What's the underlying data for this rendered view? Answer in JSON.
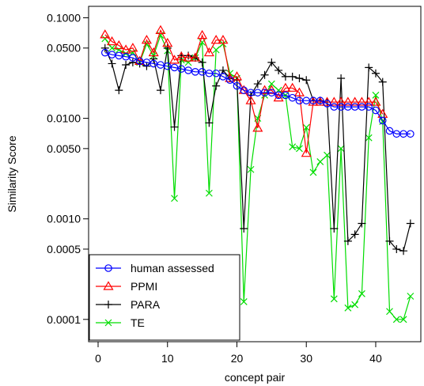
{
  "chart_data": {
    "type": "line",
    "xlabel": "concept pair",
    "ylabel": "Similarity Score",
    "xlim": [
      0,
      46.5
    ],
    "ylim": [
      6e-05,
      0.13
    ],
    "yscale": "log",
    "xticks": [
      0,
      10,
      20,
      30,
      40
    ],
    "yticks": [
      {
        "value": 0.1,
        "label": "0.1000"
      },
      {
        "value": 0.05,
        "label": "0.0500"
      },
      {
        "value": 0.01,
        "label": "0.0100"
      },
      {
        "value": 0.005,
        "label": "0.0050"
      },
      {
        "value": 0.001,
        "label": "0.0010"
      },
      {
        "value": 0.0005,
        "label": "0.0005"
      },
      {
        "value": 0.0001,
        "label": "0.0001"
      }
    ],
    "grid": false,
    "legend_position": "bottom-left",
    "series": [
      {
        "name": "human assessed",
        "color": "#0000ff",
        "marker": "circle",
        "x": [
          1,
          2,
          3,
          4,
          5,
          6,
          7,
          8,
          9,
          10,
          11,
          12,
          13,
          14,
          15,
          16,
          17,
          18,
          19,
          20,
          21,
          22,
          23,
          24,
          25,
          26,
          27,
          28,
          29,
          30,
          31,
          32,
          33,
          34,
          35,
          36,
          37,
          38,
          39,
          40,
          41,
          42,
          43,
          44,
          45
        ],
        "y": [
          0.045,
          0.043,
          0.042,
          0.041,
          0.04,
          0.037,
          0.036,
          0.035,
          0.034,
          0.033,
          0.032,
          0.031,
          0.03,
          0.029,
          0.029,
          0.028,
          0.028,
          0.026,
          0.024,
          0.021,
          0.019,
          0.018,
          0.018,
          0.018,
          0.018,
          0.017,
          0.017,
          0.016,
          0.015,
          0.015,
          0.015,
          0.015,
          0.014,
          0.013,
          0.013,
          0.013,
          0.013,
          0.013,
          0.013,
          0.012,
          0.0095,
          0.0075,
          0.007,
          0.007,
          0.007
        ]
      },
      {
        "name": "PPMI",
        "color": "#ff0000",
        "marker": "triangle",
        "x": [
          1,
          2,
          3,
          4,
          5,
          6,
          7,
          8,
          9,
          10,
          11,
          12,
          13,
          14,
          15,
          16,
          17,
          18,
          19,
          20,
          21,
          22,
          23,
          24,
          25,
          26,
          27,
          28,
          29,
          30,
          31,
          32,
          33,
          34,
          35,
          36,
          37,
          38,
          39,
          40,
          41
        ],
        "y": [
          0.068,
          0.058,
          0.053,
          0.048,
          0.05,
          0.037,
          0.06,
          0.045,
          0.075,
          0.056,
          0.038,
          0.041,
          0.04,
          0.04,
          0.067,
          0.045,
          0.06,
          0.06,
          0.025,
          0.026,
          0.019,
          0.015,
          0.008,
          0.019,
          0.019,
          0.016,
          0.02,
          0.02,
          0.018,
          0.0045,
          0.0145,
          0.0145,
          0.0145,
          0.0145,
          0.0145,
          0.0145,
          0.0145,
          0.0145,
          0.0145,
          0.0145,
          0.011
        ]
      },
      {
        "name": "PARA",
        "color": "#000000",
        "marker": "plus",
        "x": [
          1,
          2,
          3,
          4,
          5,
          6,
          7,
          8,
          9,
          10,
          11,
          12,
          13,
          14,
          15,
          16,
          17,
          18,
          19,
          20,
          21,
          22,
          23,
          24,
          25,
          26,
          27,
          28,
          29,
          30,
          31,
          32,
          33,
          34,
          35,
          36,
          37,
          38,
          39,
          40,
          41,
          42,
          43,
          44,
          45
        ],
        "y": [
          0.05,
          0.035,
          0.019,
          0.034,
          0.036,
          0.035,
          0.033,
          0.039,
          0.019,
          0.05,
          0.0082,
          0.042,
          0.042,
          0.04,
          0.036,
          0.009,
          0.021,
          0.03,
          0.025,
          0.024,
          0.0008,
          0.017,
          0.022,
          0.027,
          0.036,
          0.03,
          0.026,
          0.026,
          0.025,
          0.024,
          0.015,
          0.015,
          0.0145,
          0.0008,
          0.025,
          0.0006,
          0.0007,
          0.0009,
          0.032,
          0.028,
          0.023,
          0.0006,
          0.0005,
          0.00048,
          0.0009
        ]
      },
      {
        "name": "TE",
        "color": "#00dd00",
        "marker": "cross",
        "x": [
          1,
          2,
          3,
          4,
          5,
          6,
          7,
          8,
          9,
          10,
          11,
          12,
          13,
          14,
          15,
          16,
          17,
          18,
          19,
          20,
          21,
          22,
          23,
          24,
          25,
          26,
          27,
          28,
          29,
          30,
          31,
          32,
          33,
          34,
          35,
          36,
          37,
          38,
          39,
          40,
          41,
          42,
          43,
          44,
          45
        ],
        "y": [
          0.062,
          0.05,
          0.048,
          0.044,
          0.045,
          0.036,
          0.055,
          0.042,
          0.067,
          0.047,
          0.0016,
          0.038,
          0.036,
          0.04,
          0.057,
          0.0018,
          0.048,
          0.055,
          0.028,
          0.025,
          0.00015,
          0.0031,
          0.01,
          0.017,
          0.022,
          0.019,
          0.017,
          0.0052,
          0.005,
          0.0081,
          0.0029,
          0.0037,
          0.0043,
          0.00016,
          0.005,
          0.00013,
          0.00014,
          0.00018,
          0.0064,
          0.017,
          0.0093,
          0.00012,
          0.0001,
          0.0001,
          0.00017
        ]
      }
    ]
  }
}
